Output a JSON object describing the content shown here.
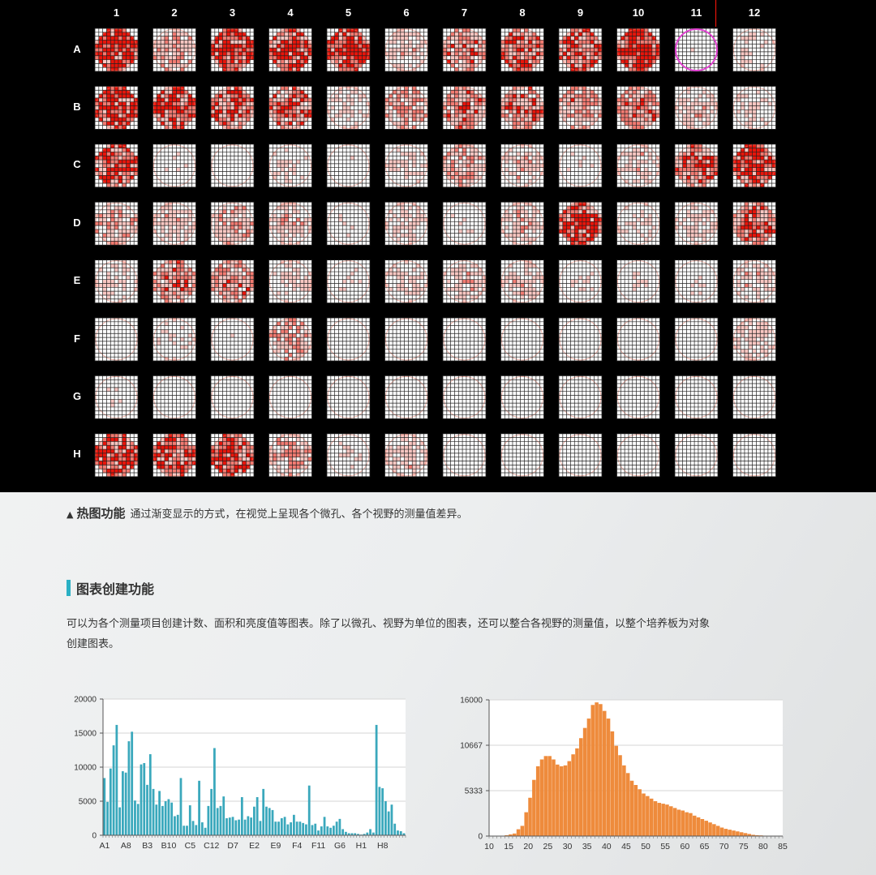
{
  "heatmap": {
    "columns": [
      "1",
      "2",
      "3",
      "4",
      "5",
      "6",
      "7",
      "8",
      "9",
      "10",
      "11",
      "12"
    ],
    "rows": [
      "A",
      "B",
      "C",
      "D",
      "E",
      "F",
      "G",
      "H"
    ],
    "selected_well": "A11",
    "colors": {
      "high": "#e8140a",
      "mid": "#f27b72",
      "low": "#f9c7c2",
      "selection": "#e040d0"
    },
    "intensity": {
      "A": [
        0.95,
        0.55,
        0.9,
        0.9,
        0.97,
        0.45,
        0.65,
        0.8,
        0.75,
        0.97,
        0.25,
        0.35
      ],
      "B": [
        0.92,
        0.88,
        0.75,
        0.7,
        0.4,
        0.6,
        0.65,
        0.7,
        0.6,
        0.65,
        0.45,
        0.35
      ],
      "C": [
        0.8,
        0.3,
        0.15,
        0.35,
        0.3,
        0.35,
        0.55,
        0.45,
        0.3,
        0.45,
        0.75,
        0.95
      ],
      "D": [
        0.5,
        0.45,
        0.5,
        0.45,
        0.3,
        0.4,
        0.3,
        0.45,
        0.85,
        0.35,
        0.4,
        0.7
      ],
      "E": [
        0.4,
        0.65,
        0.65,
        0.4,
        0.3,
        0.4,
        0.45,
        0.45,
        0.3,
        0.3,
        0.3,
        0.45
      ],
      "F": [
        0.2,
        0.35,
        0.25,
        0.55,
        0.15,
        0.15,
        0.12,
        0.15,
        0.2,
        0.15,
        0.2,
        0.45
      ],
      "G": [
        0.3,
        0.2,
        0.1,
        0.1,
        0.1,
        0.1,
        0.1,
        0.1,
        0.1,
        0.1,
        0.1,
        0.15
      ],
      "H": [
        0.85,
        0.8,
        0.8,
        0.55,
        0.3,
        0.45,
        0.25,
        0.1,
        0.15,
        0.1,
        0.1,
        0.1
      ]
    },
    "caption_title": "热图功能",
    "caption_text": "通过渐变显示的方式，在视觉上呈现各个微孔、各个视野的测量值差异。"
  },
  "section": {
    "title": "图表创建功能",
    "body_line1": "可以为各个测量项目创建计数、面积和亮度值等图表。除了以微孔、视野为单位的图表，还可以整合各视野的测量值，以整个培养板为对象",
    "body_line2": "创建图表。"
  },
  "chart_data": [
    {
      "type": "bar",
      "color": "#3aa8bc",
      "ylim": [
        0,
        20000
      ],
      "yticks": [
        0,
        5000,
        10000,
        15000,
        20000
      ],
      "xtick_labels": [
        "A1",
        "A8",
        "B3",
        "B10",
        "C5",
        "C12",
        "D7",
        "E2",
        "E9",
        "F4",
        "F11",
        "G6",
        "H1",
        "H8"
      ],
      "values": [
        8400,
        4900,
        9800,
        13200,
        16200,
        4100,
        9400,
        9200,
        13800,
        15200,
        5100,
        4600,
        10400,
        10600,
        7400,
        11900,
        6800,
        4500,
        6500,
        4300,
        5000,
        5300,
        4800,
        2800,
        3000,
        8400,
        1400,
        1400,
        4400,
        2100,
        1500,
        8000,
        1900,
        1100,
        4300,
        6800,
        12800,
        4000,
        4300,
        5700,
        2500,
        2600,
        2700,
        2200,
        2300,
        5600,
        2300,
        2800,
        2600,
        4200,
        5600,
        2100,
        6800,
        4200,
        4000,
        3700,
        2000,
        2000,
        2500,
        2700,
        1600,
        1900,
        3000,
        2000,
        2000,
        1800,
        1600,
        7300,
        1500,
        1700,
        700,
        1300,
        2700,
        1300,
        1100,
        1400,
        2000,
        2400,
        900,
        500,
        300,
        300,
        300,
        200,
        100,
        200,
        400,
        900,
        400,
        16200,
        7100,
        6900,
        5000,
        3500,
        4500,
        1700,
        700,
        600,
        300
      ]
    },
    {
      "type": "bar",
      "color": "#ee8b3c",
      "x_start": 10,
      "bin_width": 1,
      "xlim": [
        10,
        85
      ],
      "xticks": [
        10,
        15,
        20,
        25,
        30,
        35,
        40,
        45,
        50,
        55,
        60,
        65,
        70,
        75,
        80,
        85
      ],
      "ylim": [
        0,
        16000
      ],
      "yticks": [
        0,
        5333,
        10667,
        16000
      ],
      "values": [
        0,
        0,
        0,
        0,
        100,
        200,
        300,
        800,
        1200,
        2800,
        4500,
        6600,
        8200,
        9000,
        9400,
        9400,
        9000,
        8400,
        8200,
        8300,
        8800,
        9600,
        10300,
        11500,
        12700,
        13800,
        15400,
        15700,
        15500,
        14700,
        13800,
        12300,
        10600,
        9500,
        8300,
        7400,
        6500,
        6000,
        5500,
        5000,
        4700,
        4400,
        4100,
        3900,
        3800,
        3700,
        3500,
        3300,
        3100,
        3000,
        2800,
        2700,
        2400,
        2200,
        2000,
        1800,
        1600,
        1400,
        1200,
        1000,
        850,
        750,
        650,
        550,
        450,
        350,
        250,
        150,
        100,
        80,
        50
      ]
    }
  ]
}
